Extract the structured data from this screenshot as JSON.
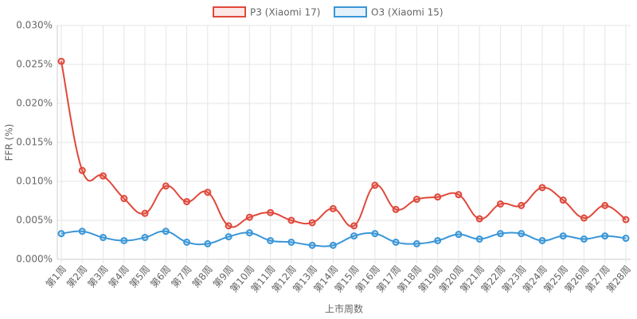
{
  "chart_data": {
    "type": "line",
    "categories": [
      "第1周",
      "第2周",
      "第3周",
      "第4周",
      "第5周",
      "第6周",
      "第7周",
      "第8周",
      "第9周",
      "第10周",
      "第11周",
      "第12周",
      "第13周",
      "第14周",
      "第15周",
      "第16周",
      "第17周",
      "第18周",
      "第19周",
      "第20周",
      "第21周",
      "第22周",
      "第23周",
      "第24周",
      "第25周",
      "第26周",
      "第27周",
      "第28周"
    ],
    "series": [
      {
        "name": "P3 (Xiaomi 17)",
        "color": "#e0483a",
        "values": [
          0.0254,
          0.0114,
          0.0107,
          0.0078,
          0.0059,
          0.0094,
          0.0074,
          0.0086,
          0.0043,
          0.0054,
          0.006,
          0.005,
          0.0047,
          0.0065,
          0.0043,
          0.0095,
          0.0064,
          0.0077,
          0.008,
          0.0083,
          0.0052,
          0.0071,
          0.0069,
          0.0092,
          0.0076,
          0.0053,
          0.0069,
          0.0051
        ]
      },
      {
        "name": "O3 (Xiaomi 15)",
        "color": "#3a96d8",
        "values": [
          0.0033,
          0.0036,
          0.0028,
          0.0024,
          0.0028,
          0.0036,
          0.0022,
          0.002,
          0.0029,
          0.0034,
          0.0024,
          0.0022,
          0.0018,
          0.0018,
          0.003,
          0.0033,
          0.0022,
          0.002,
          0.0024,
          0.0032,
          0.0026,
          0.0033,
          0.0033,
          0.0024,
          0.003,
          0.0026,
          0.003,
          0.0027
        ]
      }
    ],
    "ylim": [
      0,
      0.03
    ],
    "yticks": [
      {
        "value": 0,
        "label": "0.000%"
      },
      {
        "value": 0.005,
        "label": "0.005%"
      },
      {
        "value": 0.01,
        "label": "0.010%"
      },
      {
        "value": 0.015,
        "label": "0.015%"
      },
      {
        "value": 0.02,
        "label": "0.020%"
      },
      {
        "value": 0.025,
        "label": "0.025%"
      },
      {
        "value": 0.03,
        "label": "0.030%"
      }
    ],
    "ylabel": "FFR (%)",
    "xlabel": "上市周数",
    "grid": true,
    "legend": "top"
  }
}
